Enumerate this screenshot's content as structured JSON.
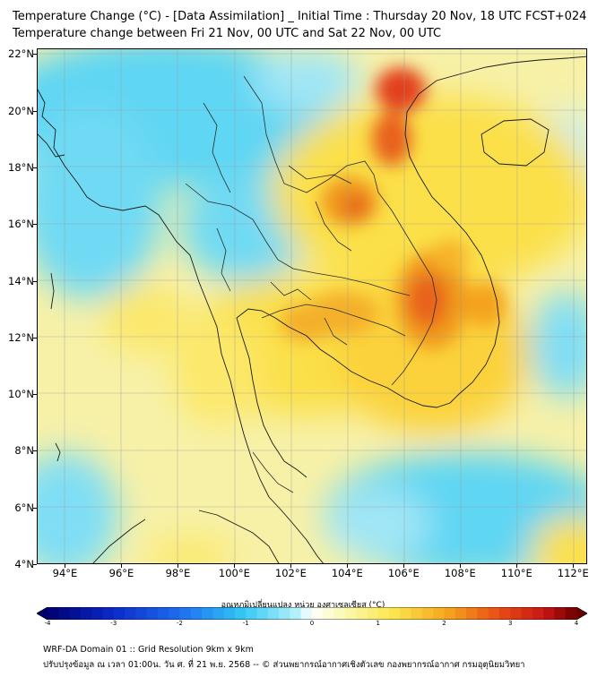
{
  "header": {
    "title_line1": "Temperature Change (°C) - [Data Assimilation] _ Initial Time : Thursday 20 Nov, 18 UTC FCST+024",
    "title_line2": "Temperature change between Fri 21 Nov, 00 UTC and Sat 22 Nov, 00 UTC"
  },
  "map": {
    "lon_min": 93,
    "lon_max": 112.5,
    "lat_min": 4,
    "lat_max": 22.2,
    "lat_labels": [
      "4°N",
      "6°N",
      "8°N",
      "10°N",
      "12°N",
      "14°N",
      "16°N",
      "18°N",
      "20°N",
      "22°N"
    ],
    "lat_values": [
      4,
      6,
      8,
      10,
      12,
      14,
      16,
      18,
      20,
      22
    ],
    "lon_labels": [
      "94°E",
      "96°E",
      "98°E",
      "100°E",
      "102°E",
      "104°E",
      "106°E",
      "108°E",
      "110°E",
      "112°E"
    ],
    "lon_values": [
      94,
      96,
      98,
      100,
      102,
      104,
      106,
      108,
      110,
      112
    ],
    "field_colors": {
      "cold": "#4fd3f2",
      "cool": "#a9e8f5",
      "neutral": "#f7f3b8",
      "warm": "#fbe04a",
      "hot": "#f4a21a",
      "hotter": "#ec5b17",
      "hottest": "#d81a12"
    }
  },
  "colorbar": {
    "label": "อุณหภูมิเปลี่ยนแปลง หน่วย องศาเซลเซียส (°C)",
    "ticks": [
      "-4",
      "-3",
      "-2",
      "-1",
      "0",
      "1",
      "2",
      "3",
      "4"
    ],
    "min": -4,
    "max": 4
  },
  "footer": {
    "line1": "WRF-DA Domain 01 :: Grid Resolution 9km x 9km",
    "line2": "ปรับปรุงข้อมูล ณ เวลา 01:00น. วัน ศ. ที่ 21 พ.ย. 2568 -- © ส่วนพยากรณ์อากาศเชิงตัวเลข กองพยากรณ์อากาศ กรมอุตุนิยมวิทยา"
  }
}
